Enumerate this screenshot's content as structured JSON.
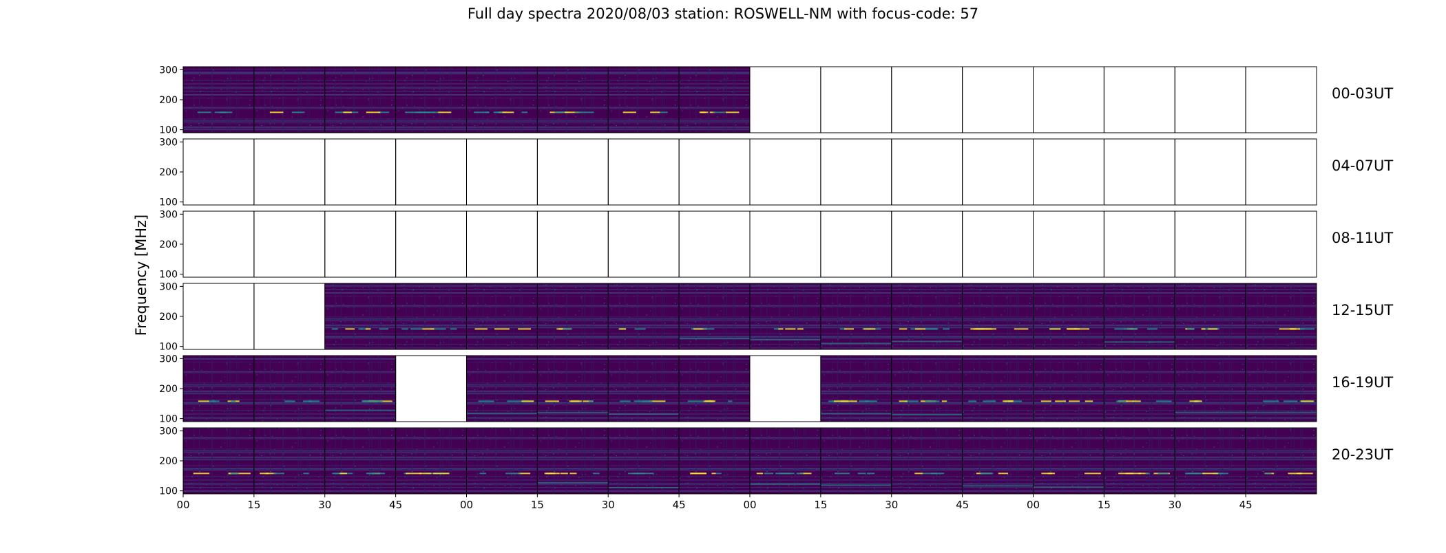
{
  "title": "Full day spectra 2020/08/03 station: ROSWELL-NM with focus-code: 57",
  "chart_data": {
    "type": "heatmap",
    "title": "Full day spectra 2020/08/03 station: ROSWELL-NM with focus-code: 57",
    "ylabel": "Frequency [MHz]",
    "xlabel": "",
    "ylim": [
      90,
      310
    ],
    "y_ticks": [
      100,
      200,
      300
    ],
    "x_tick_labels": [
      "00",
      "15",
      "30",
      "45",
      "00",
      "15",
      "30",
      "45",
      "00",
      "15",
      "30",
      "45",
      "00",
      "15",
      "30",
      "45"
    ],
    "colormap": "viridis",
    "rows": [
      {
        "label": "00-03UT",
        "panels": [
          1,
          1,
          1,
          1,
          1,
          1,
          1,
          1,
          0,
          0,
          0,
          0,
          0,
          0,
          0,
          0
        ]
      },
      {
        "label": "04-07UT",
        "panels": [
          0,
          0,
          0,
          0,
          0,
          0,
          0,
          0,
          0,
          0,
          0,
          0,
          0,
          0,
          0,
          0
        ]
      },
      {
        "label": "08-11UT",
        "panels": [
          0,
          0,
          0,
          0,
          0,
          0,
          0,
          0,
          0,
          0,
          0,
          0,
          0,
          0,
          0,
          0
        ]
      },
      {
        "label": "12-15UT",
        "panels": [
          0,
          0,
          1,
          1,
          1,
          1,
          1,
          1,
          1,
          1,
          1,
          1,
          1,
          1,
          1,
          1
        ]
      },
      {
        "label": "16-19UT",
        "panels": [
          1,
          1,
          1,
          0,
          1,
          1,
          1,
          1,
          0,
          1,
          1,
          1,
          1,
          1,
          1,
          1
        ]
      },
      {
        "label": "20-23UT",
        "panels": [
          1,
          1,
          1,
          1,
          1,
          1,
          1,
          1,
          1,
          1,
          1,
          1,
          1,
          1,
          1,
          1
        ]
      }
    ],
    "colors": {
      "background": "#440154",
      "mid": "#3b528b",
      "teal": "#21918c",
      "bright": "#fde725"
    }
  }
}
